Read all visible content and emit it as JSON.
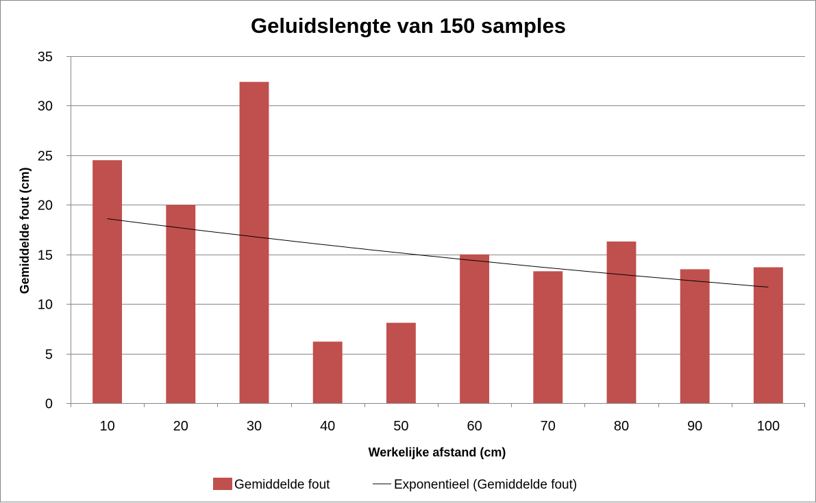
{
  "chart_data": {
    "type": "bar",
    "title": "Geluidslengte van 150 samples",
    "xlabel": "Werkelijke afstand (cm)",
    "ylabel": "Gemiddelde fout (cm)",
    "categories": [
      "10",
      "20",
      "30",
      "40",
      "50",
      "60",
      "70",
      "80",
      "90",
      "100"
    ],
    "series": [
      {
        "name": "Gemiddelde fout",
        "values": [
          24.5,
          20.0,
          32.4,
          6.2,
          8.1,
          15.0,
          13.3,
          16.3,
          13.5,
          13.7
        ],
        "color": "#c0504d"
      }
    ],
    "trendline": {
      "name": "Exponentieel (Gemiddelde fout)",
      "type": "exponential",
      "start_value": 18.6,
      "end_value": 11.7,
      "color": "#000000"
    },
    "ylim": [
      0,
      35
    ],
    "yticks": [
      0,
      5,
      10,
      15,
      20,
      25,
      30,
      35
    ],
    "grid": true,
    "legend_position": "bottom"
  }
}
